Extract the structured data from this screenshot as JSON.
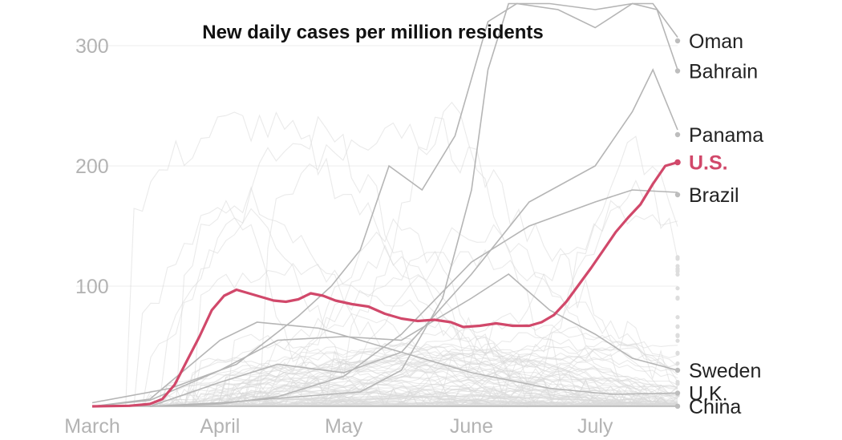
{
  "chart_data": {
    "type": "line",
    "title": "New daily cases per million residents",
    "xlabel": "",
    "ylabel": "",
    "x_ticks": [
      "March",
      "April",
      "May",
      "June",
      "July"
    ],
    "y_ticks": [
      100,
      200,
      300
    ],
    "xlim": [
      "2020-03-01",
      "2020-07-21"
    ],
    "ylim": [
      0,
      335
    ],
    "grid": true,
    "x_tick_dates": [
      "2020-03-01",
      "2020-04-01",
      "2020-05-01",
      "2020-06-01",
      "2020-07-01"
    ],
    "highlight": {
      "name": "U.S.",
      "color": "#d1486a",
      "points": [
        [
          "2020-03-01",
          0
        ],
        [
          "2020-03-10",
          0.5
        ],
        [
          "2020-03-15",
          2
        ],
        [
          "2020-03-18",
          6
        ],
        [
          "2020-03-21",
          18
        ],
        [
          "2020-03-24",
          38
        ],
        [
          "2020-03-27",
          58
        ],
        [
          "2020-03-30",
          80
        ],
        [
          "2020-04-02",
          92
        ],
        [
          "2020-04-05",
          97
        ],
        [
          "2020-04-08",
          94
        ],
        [
          "2020-04-11",
          91
        ],
        [
          "2020-04-14",
          88
        ],
        [
          "2020-04-17",
          87
        ],
        [
          "2020-04-20",
          89
        ],
        [
          "2020-04-23",
          94
        ],
        [
          "2020-04-26",
          92
        ],
        [
          "2020-04-29",
          88
        ],
        [
          "2020-05-03",
          85
        ],
        [
          "2020-05-07",
          83
        ],
        [
          "2020-05-11",
          77
        ],
        [
          "2020-05-15",
          73
        ],
        [
          "2020-05-19",
          71
        ],
        [
          "2020-05-23",
          72
        ],
        [
          "2020-05-27",
          70
        ],
        [
          "2020-05-30",
          66
        ],
        [
          "2020-06-03",
          67
        ],
        [
          "2020-06-07",
          69
        ],
        [
          "2020-06-11",
          67
        ],
        [
          "2020-06-15",
          67
        ],
        [
          "2020-06-18",
          70
        ],
        [
          "2020-06-21",
          76
        ],
        [
          "2020-06-24",
          87
        ],
        [
          "2020-06-27",
          101
        ],
        [
          "2020-06-30",
          115
        ],
        [
          "2020-07-03",
          130
        ],
        [
          "2020-07-06",
          145
        ],
        [
          "2020-07-09",
          157
        ],
        [
          "2020-07-12",
          168
        ],
        [
          "2020-07-15",
          185
        ],
        [
          "2020-07-18",
          200
        ],
        [
          "2020-07-21",
          203
        ]
      ]
    },
    "labeled_series": [
      {
        "name": "Oman",
        "points": [
          [
            "2020-03-15",
            0
          ],
          [
            "2020-04-01",
            3
          ],
          [
            "2020-04-20",
            8
          ],
          [
            "2020-05-05",
            12
          ],
          [
            "2020-05-15",
            30
          ],
          [
            "2020-05-25",
            90
          ],
          [
            "2020-06-01",
            180
          ],
          [
            "2020-06-05",
            280
          ],
          [
            "2020-06-10",
            340
          ],
          [
            "2020-06-20",
            335
          ],
          [
            "2020-07-01",
            330
          ],
          [
            "2020-07-10",
            335
          ],
          [
            "2020-07-15",
            338
          ],
          [
            "2020-07-21",
            307
          ]
        ]
      },
      {
        "name": "Bahrain",
        "points": [
          [
            "2020-03-01",
            3
          ],
          [
            "2020-03-20",
            15
          ],
          [
            "2020-04-05",
            35
          ],
          [
            "2020-04-20",
            75
          ],
          [
            "2020-04-28",
            100
          ],
          [
            "2020-05-05",
            130
          ],
          [
            "2020-05-12",
            200
          ],
          [
            "2020-05-20",
            180
          ],
          [
            "2020-05-28",
            225
          ],
          [
            "2020-06-05",
            320
          ],
          [
            "2020-06-12",
            340
          ],
          [
            "2020-06-22",
            330
          ],
          [
            "2020-07-01",
            315
          ],
          [
            "2020-07-10",
            335
          ],
          [
            "2020-07-16",
            330
          ],
          [
            "2020-07-21",
            280
          ]
        ]
      },
      {
        "name": "Panama",
        "points": [
          [
            "2020-03-15",
            0
          ],
          [
            "2020-04-01",
            20
          ],
          [
            "2020-04-15",
            35
          ],
          [
            "2020-05-01",
            28
          ],
          [
            "2020-05-15",
            45
          ],
          [
            "2020-06-01",
            110
          ],
          [
            "2020-06-15",
            170
          ],
          [
            "2020-07-01",
            200
          ],
          [
            "2020-07-10",
            245
          ],
          [
            "2020-07-15",
            280
          ],
          [
            "2020-07-21",
            230
          ]
        ]
      },
      {
        "name": "Brazil",
        "points": [
          [
            "2020-03-15",
            0
          ],
          [
            "2020-04-01",
            2
          ],
          [
            "2020-04-15",
            8
          ],
          [
            "2020-05-01",
            25
          ],
          [
            "2020-05-15",
            60
          ],
          [
            "2020-06-01",
            120
          ],
          [
            "2020-06-15",
            150
          ],
          [
            "2020-07-01",
            170
          ],
          [
            "2020-07-10",
            180
          ],
          [
            "2020-07-21",
            178
          ]
        ]
      },
      {
        "name": "Sweden",
        "points": [
          [
            "2020-03-01",
            0
          ],
          [
            "2020-03-15",
            5
          ],
          [
            "2020-04-01",
            30
          ],
          [
            "2020-04-15",
            55
          ],
          [
            "2020-05-01",
            58
          ],
          [
            "2020-05-15",
            55
          ],
          [
            "2020-06-01",
            90
          ],
          [
            "2020-06-10",
            110
          ],
          [
            "2020-06-20",
            80
          ],
          [
            "2020-07-01",
            60
          ],
          [
            "2020-07-10",
            40
          ],
          [
            "2020-07-21",
            30
          ]
        ]
      },
      {
        "name": "U.K.",
        "points": [
          [
            "2020-03-01",
            0
          ],
          [
            "2020-03-15",
            6
          ],
          [
            "2020-04-01",
            55
          ],
          [
            "2020-04-10",
            70
          ],
          [
            "2020-04-25",
            65
          ],
          [
            "2020-05-10",
            50
          ],
          [
            "2020-06-01",
            28
          ],
          [
            "2020-06-20",
            15
          ],
          [
            "2020-07-05",
            10
          ],
          [
            "2020-07-21",
            11
          ]
        ]
      },
      {
        "name": "China",
        "points": [
          [
            "2020-03-01",
            0.5
          ],
          [
            "2020-03-15",
            0.1
          ],
          [
            "2020-04-01",
            0.1
          ],
          [
            "2020-05-01",
            0.1
          ],
          [
            "2020-06-01",
            0.1
          ],
          [
            "2020-07-01",
            0.1
          ],
          [
            "2020-07-21",
            0.1
          ]
        ]
      }
    ],
    "labels": [
      {
        "name": "Oman",
        "y": 304
      },
      {
        "name": "Bahrain",
        "y": 279
      },
      {
        "name": "Panama",
        "y": 226
      },
      {
        "name": "U.S.",
        "y": 203
      },
      {
        "name": "Brazil",
        "y": 176
      },
      {
        "name": "Sweden",
        "y": 30
      },
      {
        "name": "U.K.",
        "y": 11
      },
      {
        "name": "China",
        "y": 0.1
      }
    ]
  }
}
